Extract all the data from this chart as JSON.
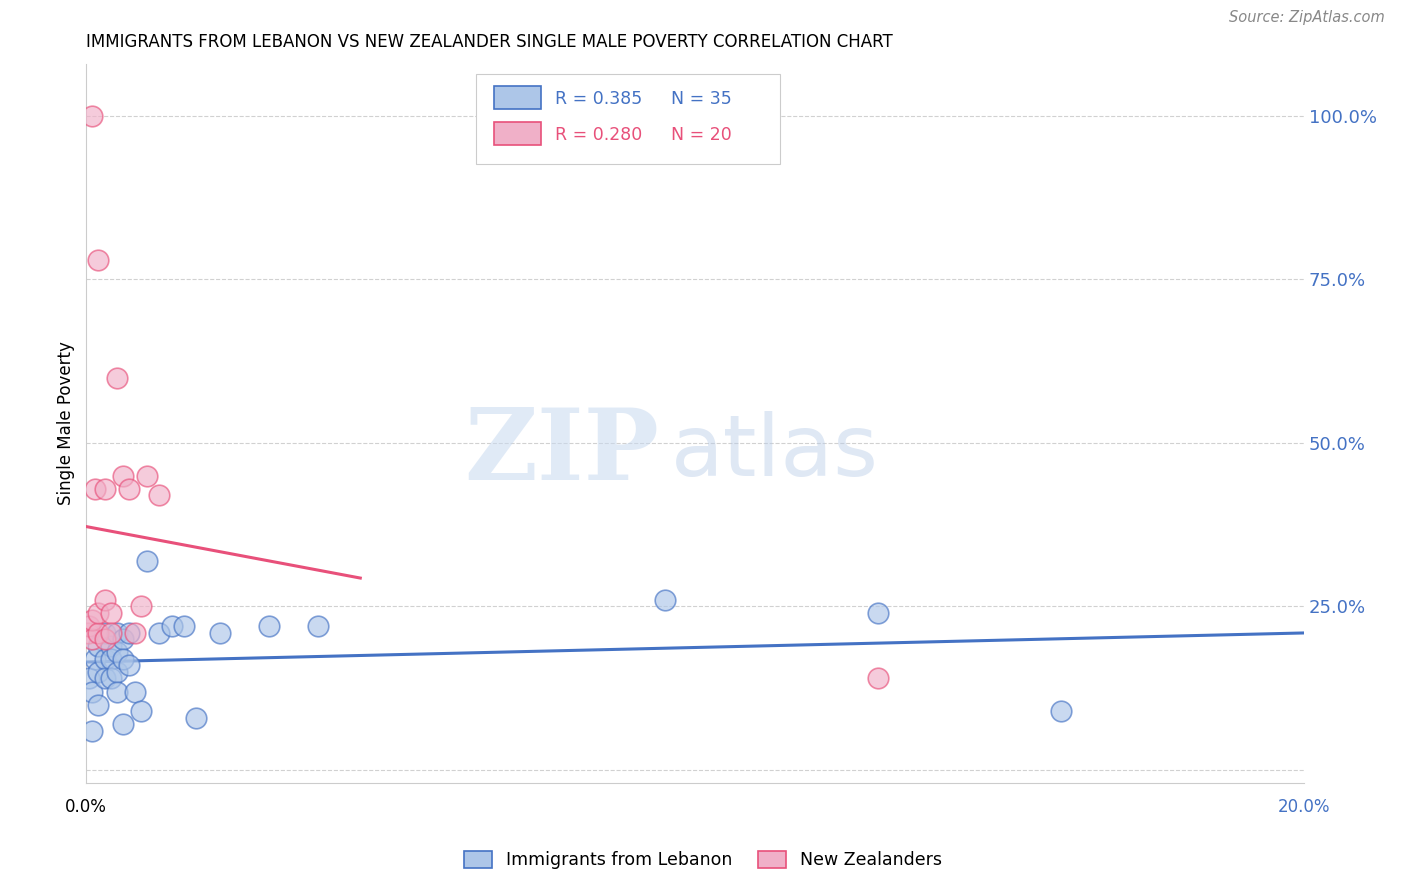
{
  "title": "IMMIGRANTS FROM LEBANON VS NEW ZEALANDER SINGLE MALE POVERTY CORRELATION CHART",
  "source": "Source: ZipAtlas.com",
  "ylabel": "Single Male Poverty",
  "legend_label1": "Immigrants from Lebanon",
  "legend_label2": "New Zealanders",
  "R1": 0.385,
  "N1": 35,
  "R2": 0.28,
  "N2": 20,
  "color_blue": "#adc6e8",
  "color_pink": "#f0b0c8",
  "color_blue_line": "#4472c4",
  "color_pink_line": "#e8507a",
  "color_blue_text": "#4472c4",
  "color_pink_text": "#e8507a",
  "yticks": [
    0.0,
    0.25,
    0.5,
    0.75,
    1.0
  ],
  "ytick_labels": [
    "",
    "25.0%",
    "50.0%",
    "75.0%",
    "100.0%"
  ],
  "xlim": [
    0.0,
    0.2
  ],
  "ylim": [
    -0.02,
    1.08
  ],
  "blue_x": [
    0.0005,
    0.001,
    0.001,
    0.0015,
    0.002,
    0.002,
    0.002,
    0.003,
    0.003,
    0.003,
    0.004,
    0.004,
    0.004,
    0.005,
    0.005,
    0.005,
    0.005,
    0.006,
    0.006,
    0.006,
    0.007,
    0.007,
    0.008,
    0.009,
    0.01,
    0.012,
    0.014,
    0.016,
    0.018,
    0.022,
    0.03,
    0.038,
    0.095,
    0.13,
    0.16
  ],
  "blue_y": [
    0.14,
    0.12,
    0.06,
    0.17,
    0.19,
    0.15,
    0.1,
    0.21,
    0.17,
    0.14,
    0.19,
    0.17,
    0.14,
    0.21,
    0.18,
    0.15,
    0.12,
    0.2,
    0.17,
    0.07,
    0.21,
    0.16,
    0.12,
    0.09,
    0.32,
    0.21,
    0.22,
    0.22,
    0.08,
    0.21,
    0.22,
    0.22,
    0.26,
    0.24,
    0.09
  ],
  "pink_x": [
    0.0003,
    0.0005,
    0.001,
    0.001,
    0.0015,
    0.002,
    0.002,
    0.003,
    0.003,
    0.003,
    0.004,
    0.004,
    0.005,
    0.006,
    0.007,
    0.008,
    0.009,
    0.01,
    0.012,
    0.13
  ],
  "pink_y": [
    0.21,
    0.22,
    0.2,
    0.23,
    0.43,
    0.21,
    0.24,
    0.43,
    0.26,
    0.2,
    0.24,
    0.21,
    0.6,
    0.45,
    0.43,
    0.21,
    0.25,
    0.45,
    0.42,
    0.14
  ],
  "pink_outlier_x": [
    0.001
  ],
  "pink_outlier_y": [
    1.0
  ],
  "pink_outlier2_x": [
    0.002
  ],
  "pink_outlier2_y": [
    0.78
  ],
  "watermark_zip": "ZIP",
  "watermark_atlas": "atlas",
  "background_color": "#ffffff",
  "grid_color": "#cccccc"
}
